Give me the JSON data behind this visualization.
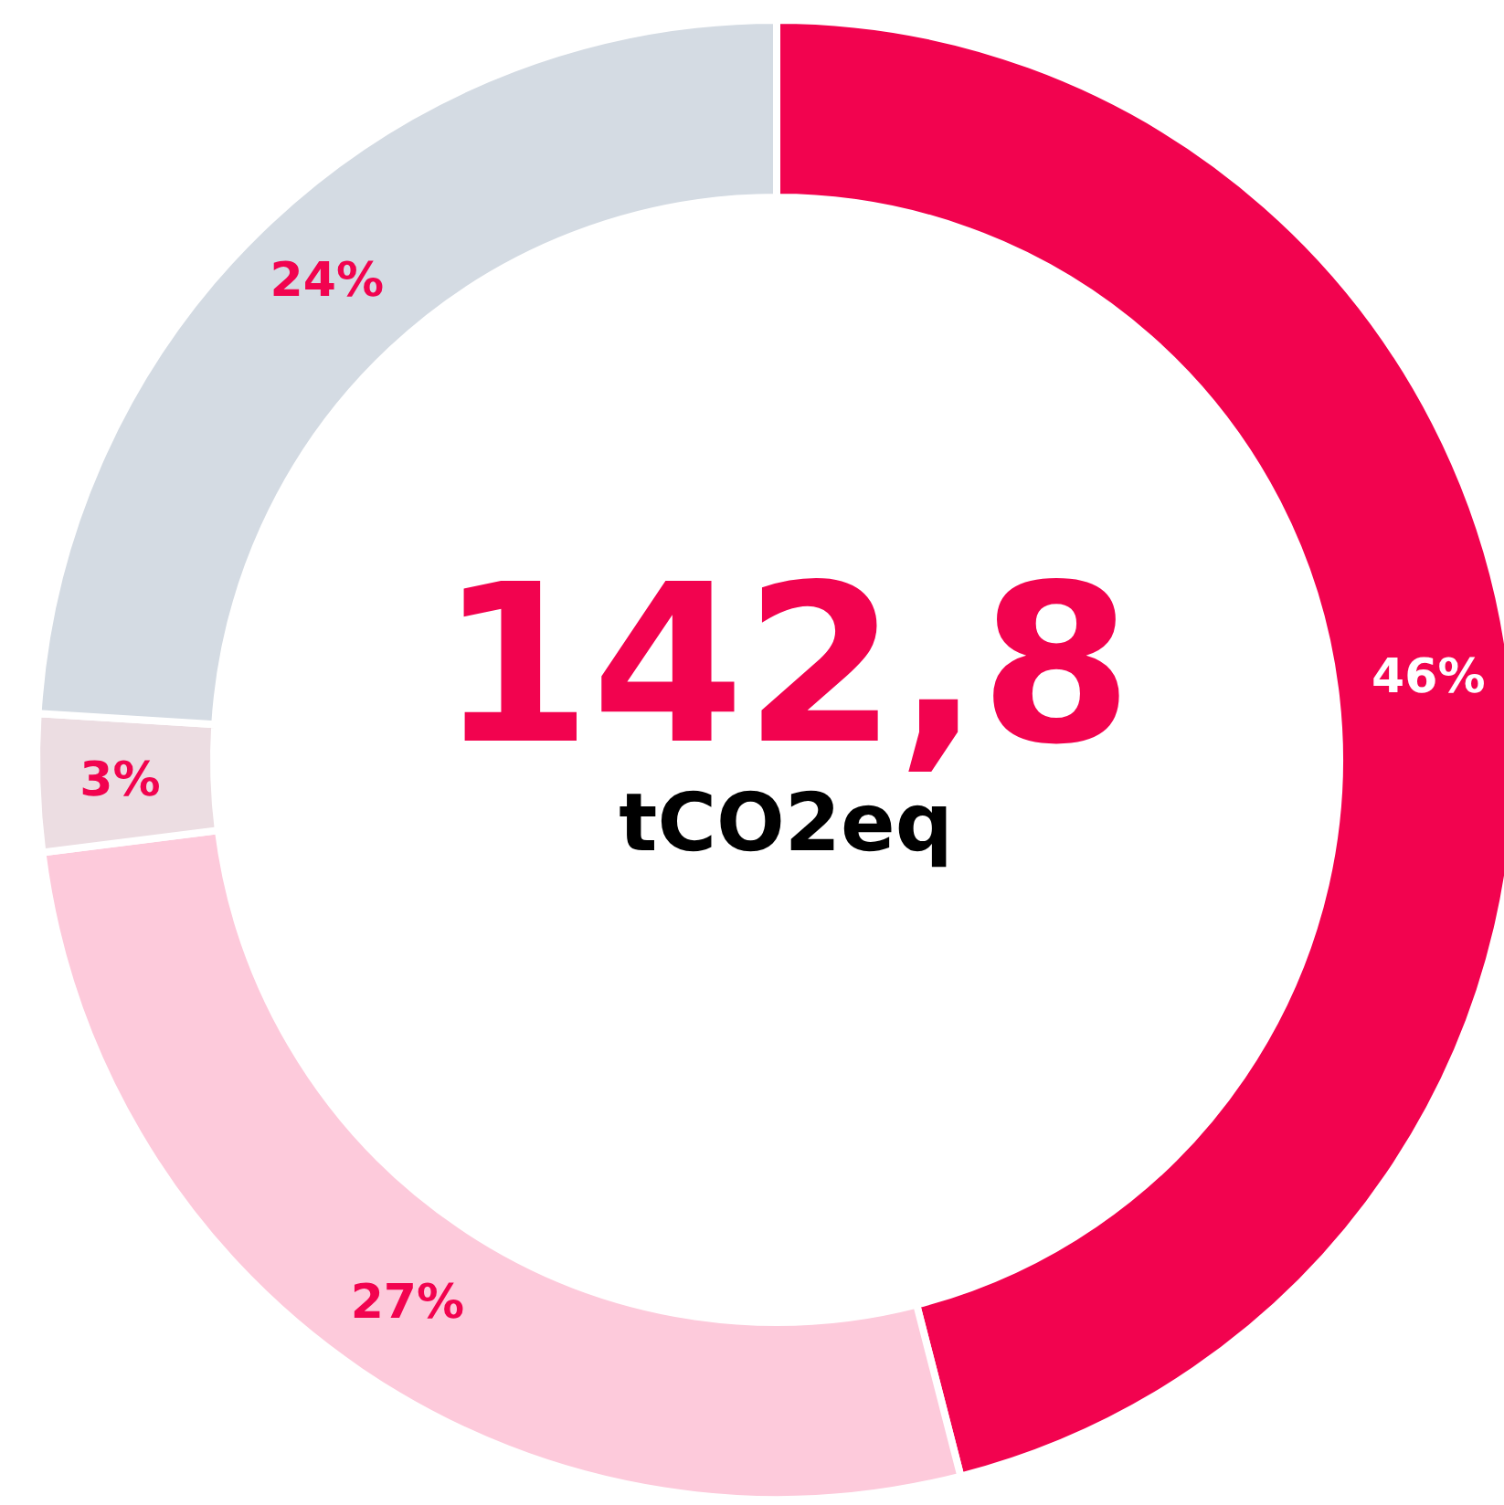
{
  "chart_data": {
    "type": "donut",
    "title": "142,8",
    "subtitle": "tCO2eq",
    "categories": [
      null,
      null,
      null,
      null
    ],
    "values": [
      46,
      27,
      3,
      24
    ],
    "colors": [
      "#f2034f",
      "#fdcadb",
      "#ecdde2",
      "#d4dbe3"
    ],
    "value_labels": [
      "46%",
      "27%",
      "3%",
      "24%"
    ]
  }
}
